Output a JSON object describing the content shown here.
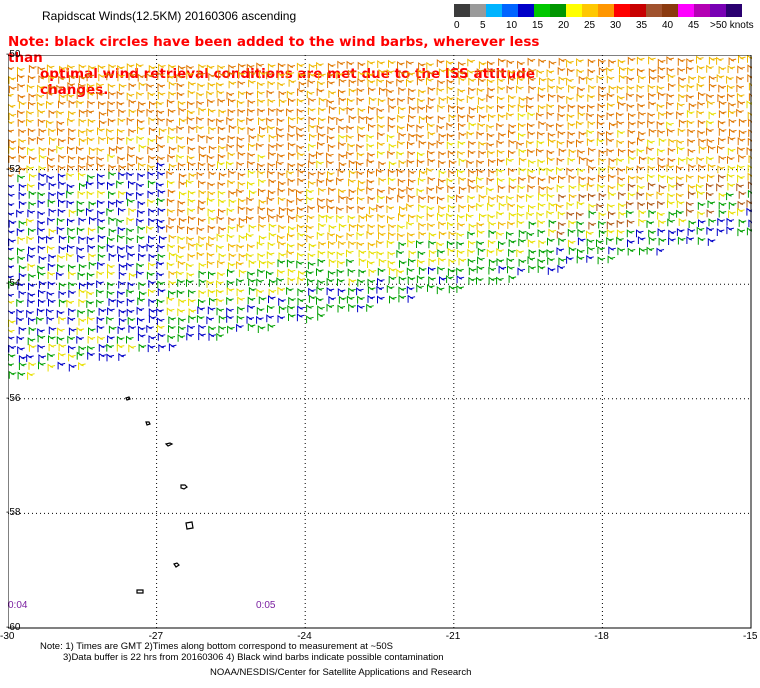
{
  "title": "Rapidscat Winds(12.5KM) 20160306 ascending",
  "note_lines": [
    "Note: black circles have been added to the wind barbs, wherever less than",
    "optimal wind retrieval conditions are met due to the ISS attitude changes."
  ],
  "legend": {
    "labels": [
      "0",
      "5",
      "10",
      "15",
      "20",
      "25",
      "30",
      "35",
      "40",
      "45",
      ">50 knots"
    ],
    "colors": [
      "#3c3c3c",
      "#9a9a9a",
      "#00b4ff",
      "#0064ff",
      "#0000c8",
      "#00c800",
      "#009600",
      "#ffff00",
      "#ffc800",
      "#ff9600",
      "#ff0000",
      "#c80000",
      "#a0522d",
      "#8b3a0f",
      "#ff00ff",
      "#b400b4",
      "#7800b4",
      "#2a0070"
    ]
  },
  "axes": {
    "x_ticks": [
      "-30",
      "-27",
      "-24",
      "-21",
      "-18",
      "-15"
    ],
    "y_ticks": [
      "-50",
      "-52",
      "-54",
      "-56",
      "-58",
      "-60"
    ]
  },
  "times": [
    "0:04",
    "0:05"
  ],
  "footer": {
    "line1": "Note: 1) Times are GMT 2)Times along bottom correspond to measurement at ~50S",
    "line2": "3)Data buffer is 22 hrs from 20160306 4) Black wind barbs indicate possible contamination",
    "line3": "NOAA/NESDIS/Center for Satellite Applications and Research"
  }
}
